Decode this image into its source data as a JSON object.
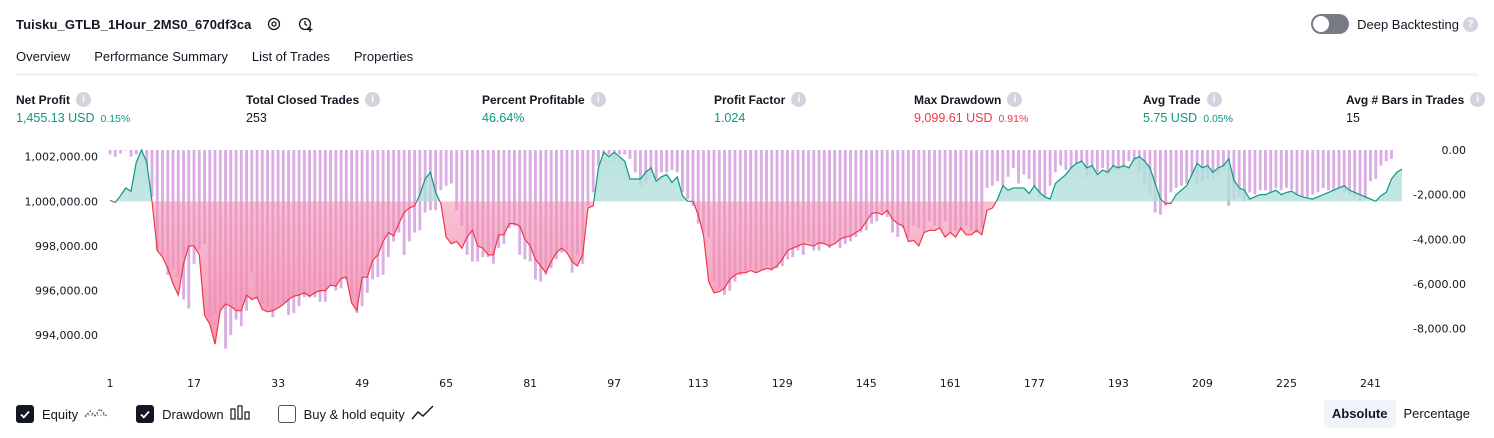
{
  "header": {
    "title": "Tuisku_GTLB_1Hour_2MS0_670df3ca",
    "icons": [
      "settings-icon",
      "add-alert-icon"
    ],
    "deep_backtesting": {
      "label": "Deep Backtesting",
      "enabled": false
    }
  },
  "tabs": [
    {
      "label": "Overview",
      "active": true
    },
    {
      "label": "Performance Summary",
      "active": false
    },
    {
      "label": "List of Trades",
      "active": false
    },
    {
      "label": "Properties",
      "active": false
    }
  ],
  "metrics": [
    {
      "label": "Net Profit",
      "value": "1,455.13 USD",
      "pct": "0.15%",
      "tone": "pos"
    },
    {
      "label": "Total Closed Trades",
      "value": "253",
      "pct": "",
      "tone": "plain"
    },
    {
      "label": "Percent Profitable",
      "value": "46.64%",
      "pct": "",
      "tone": "pos"
    },
    {
      "label": "Profit Factor",
      "value": "1.024",
      "pct": "",
      "tone": "pos"
    },
    {
      "label": "Max Drawdown",
      "value": "9,099.61 USD",
      "pct": "0.91%",
      "tone": "neg"
    },
    {
      "label": "Avg Trade",
      "value": "5.75 USD",
      "pct": "0.05%",
      "tone": "pos"
    },
    {
      "label": "Avg # Bars in Trades",
      "value": "15",
      "pct": "",
      "tone": "plain"
    }
  ],
  "legend": [
    {
      "label": "Equity",
      "checked": true,
      "icon": "equity-line-icon"
    },
    {
      "label": "Drawdown",
      "checked": true,
      "icon": "drawdown-bars-icon"
    },
    {
      "label": "Buy & hold equity",
      "checked": false,
      "icon": "buy-hold-line-icon"
    }
  ],
  "modes": [
    {
      "label": "Absolute",
      "active": true
    },
    {
      "label": "Percentage",
      "active": false
    }
  ],
  "colors": {
    "positive": "#089981",
    "negative": "#f23645",
    "drawdown_bar": "#ce93d8",
    "equity_up_fill": "#b2dfdb",
    "equity_down_fill": "#f48fb1",
    "text": "#131722"
  },
  "chart_data": {
    "type": "area",
    "series": [
      {
        "name": "Equity",
        "axis": "left",
        "x_start": 1,
        "x_step": 1,
        "values": [
          1000040,
          999950,
          1000250,
          1000600,
          1000450,
          1001750,
          1002300,
          1001750,
          1000000,
          997800,
          997500,
          997000,
          996300,
          995800,
          997200,
          998000,
          998000,
          997600,
          994900,
          994500,
          993600,
          995100,
          995400,
          995300,
          995100,
          995100,
          995800,
          995600,
          995700,
          995150,
          995050,
          995100,
          995220,
          995380,
          995600,
          995750,
          995800,
          995900,
          995750,
          995900,
          996000,
          996000,
          996250,
          996200,
          996550,
          996600,
          995450,
          995100,
          996600,
          996600,
          997350,
          997600,
          998200,
          998600,
          998450,
          999000,
          999500,
          999700,
          999800,
          1000300,
          1001000,
          1001300,
          1000400,
          999900,
          998400,
          998100,
          998200,
          997900,
          998400,
          998700,
          998000,
          997900,
          997600,
          997600,
          998500,
          998500,
          999000,
          999000,
          998900,
          998300,
          998000,
          997400,
          997100,
          996800,
          997300,
          997700,
          997900,
          997700,
          997300,
          997100,
          997600,
          999700,
          999800,
          1001500,
          1002200,
          1002000,
          1002200,
          1002000,
          1001800,
          1001000,
          1001000,
          1001000,
          1001300,
          1001500,
          1000900,
          1001100,
          1001200,
          1000850,
          1001100,
          1000250,
          1000000,
          1000000,
          999400,
          998500,
          996400,
          995900,
          995950,
          996100,
          996500,
          996700,
          996800,
          996800,
          996900,
          996800,
          996900,
          997000,
          996950,
          997100,
          997400,
          997800,
          997900,
          998000,
          998100,
          998050,
          998000,
          998150,
          998100,
          998000,
          998100,
          998300,
          998400,
          998450,
          998600,
          998750,
          999100,
          999450,
          999500,
          999400,
          999600,
          999200,
          999000,
          998900,
          998200,
          998250,
          998000,
          998600,
          998700,
          998700,
          998800,
          998400,
          998600,
          998400,
          998800,
          998500,
          998500,
          998700,
          998500,
          999600,
          999700,
          1000100,
          1000700,
          1000500,
          1000600,
          1000600,
          1000600,
          1000350,
          1000700,
          1000400,
          1000200,
          1000100,
          1000800,
          1001000,
          1001200,
          1001500,
          1001700,
          1001800,
          1001500,
          1001600,
          1001200,
          1001400,
          1001300,
          1001600,
          1001500,
          1001600,
          1001500,
          1001900,
          1002000,
          1001800,
          1001500,
          1000800,
          1000100,
          999900,
          999900,
          1000300,
          1000500,
          1000700,
          1001200,
          1001700,
          1001500,
          1001600,
          1001300,
          1001500,
          1001600,
          1001900,
          1000950,
          1000600,
          1000500,
          1000100,
          1000200,
          1000300,
          1000300,
          1000400,
          1000500,
          1000300,
          1000400,
          1000450,
          1000300,
          1000200,
          1000150,
          1000100,
          1000200,
          1000300,
          1000400,
          1000500,
          1000600,
          1000700,
          1000500,
          1000400,
          1000300,
          1000200,
          1000100,
          1000000,
          1000250,
          1000400,
          1001000,
          1001300,
          1001450
        ]
      },
      {
        "name": "Drawdown",
        "axis": "right",
        "x_start": 1,
        "x_step": 1,
        "values": [
          -200,
          -300,
          -150,
          0,
          -300,
          -200,
          0,
          -700,
          -2100,
          -4500,
          -4700,
          -5600,
          -5300,
          -5700,
          -6700,
          -7100,
          -5100,
          -4500,
          -4200,
          -7500,
          -7300,
          -7200,
          -8900,
          -8300,
          -7600,
          -7900,
          -7200,
          -5500,
          -6600,
          -6900,
          -7000,
          -7500,
          -6900,
          -6900,
          -7400,
          -7300,
          -7000,
          -6600,
          -6600,
          -6600,
          -6800,
          -6800,
          -6100,
          -6300,
          -6200,
          -5800,
          -6700,
          -7300,
          -7000,
          -6400,
          -5800,
          -5700,
          -5600,
          -4800,
          -4100,
          -3700,
          -4700,
          -4100,
          -3700,
          -3600,
          -2800,
          -2700,
          -2700,
          -1800,
          -1600,
          -1500,
          -2700,
          -3400,
          -4700,
          -5000,
          -5000,
          -4800,
          -4800,
          -5100,
          -4400,
          -4200,
          -3500,
          -3400,
          -4700,
          -4900,
          -5000,
          -5800,
          -5900,
          -5600,
          -5300,
          -4900,
          -4600,
          -4500,
          -5500,
          -4700,
          -5100,
          -2500,
          -1900,
          -700,
          -200,
          -200,
          -500,
          -200,
          -200,
          -400,
          -1000,
          -1600,
          -1500,
          -1000,
          -1300,
          -1000,
          -1000,
          -900,
          -1000,
          -1900,
          -2200,
          -2500,
          -3300,
          -3700,
          -3900,
          -5900,
          -6200,
          -6500,
          -6300,
          -5900,
          -5600,
          -5500,
          -5300,
          -5500,
          -5400,
          -5200,
          -5400,
          -5300,
          -5200,
          -4900,
          -4800,
          -4500,
          -4700,
          -4100,
          -4500,
          -4500,
          -4200,
          -4400,
          -4100,
          -4400,
          -4200,
          -4100,
          -3900,
          -3700,
          -3600,
          -3300,
          -3200,
          -2800,
          -3000,
          -3700,
          -3900,
          -3500,
          -3900,
          -3400,
          -3500,
          -3700,
          -3200,
          -3400,
          -3500,
          -3200,
          -3700,
          -3600,
          -3600,
          -3400,
          -3600,
          -3700,
          -3500,
          -1700,
          -1600,
          -1400,
          -1600,
          -1200,
          -800,
          -1500,
          -1100,
          -1300,
          -1600,
          -2100,
          -2200,
          -1600,
          -1000,
          -700,
          -900,
          -800,
          -600,
          -500,
          -1200,
          -900,
          -1000,
          -800,
          -1100,
          -800,
          -900,
          -800,
          -500,
          -500,
          -1000,
          -1500,
          -2000,
          -2800,
          -2900,
          -2500,
          -1900,
          -1700,
          -1600,
          -1500,
          -1200,
          -1500,
          -1400,
          -1300,
          -1300,
          -1100,
          -900,
          -2500,
          -2200,
          -2100,
          -2300,
          -1900,
          -2000,
          -1800,
          -1800,
          -1900,
          -1700,
          -1800,
          -1700,
          -1800,
          -2000,
          -2100,
          -2100,
          -2000,
          -1900,
          -1700,
          -1800,
          -1800,
          -1700,
          -1900,
          -2000,
          -2100,
          -2300,
          -2200,
          -1400,
          -1300,
          -700,
          -500,
          -400
        ]
      }
    ],
    "x_ticks": [
      "1",
      "17",
      "33",
      "49",
      "65",
      "81",
      "97",
      "113",
      "129",
      "145",
      "161",
      "177",
      "193",
      "209",
      "225",
      "241"
    ],
    "y_left_ticks": [
      "1,002,000.00",
      "1,000,000.00",
      "998,000.00",
      "996,000.00",
      "994,000.00"
    ],
    "y_right_ticks": [
      "0.00",
      "-2,000.00",
      "-4,000.00",
      "-6,000.00",
      "-8,000.00"
    ],
    "y_left_range": [
      992800,
      1002300
    ],
    "y_right_range": [
      -9500,
      0
    ],
    "baseline": 1000000,
    "grid": false,
    "legend_position": "bottom-left"
  }
}
